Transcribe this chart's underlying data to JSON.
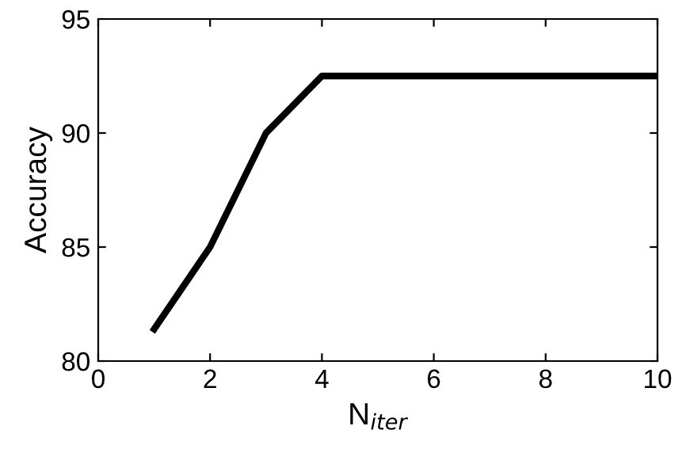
{
  "chart_data": {
    "type": "line",
    "xlabel": "N$_{iter}$",
    "ylabel": "Accuracy",
    "x": [
      1,
      2,
      3,
      4,
      5,
      6,
      7,
      8,
      9,
      10
    ],
    "series": [
      {
        "color": "#000000",
        "values": [
          81.4,
          85,
          90,
          92.5,
          92.5,
          92.5,
          92.5,
          92.5,
          92.5,
          92.5
        ]
      }
    ],
    "xlim": [
      0,
      10
    ],
    "xticks": [
      0,
      2,
      4,
      6,
      8,
      10
    ],
    "ylim": [
      80,
      95
    ],
    "yticks": [
      80,
      85,
      90,
      95
    ],
    "grid": false,
    "legend": false,
    "marker": "none",
    "line_style": "solid"
  }
}
